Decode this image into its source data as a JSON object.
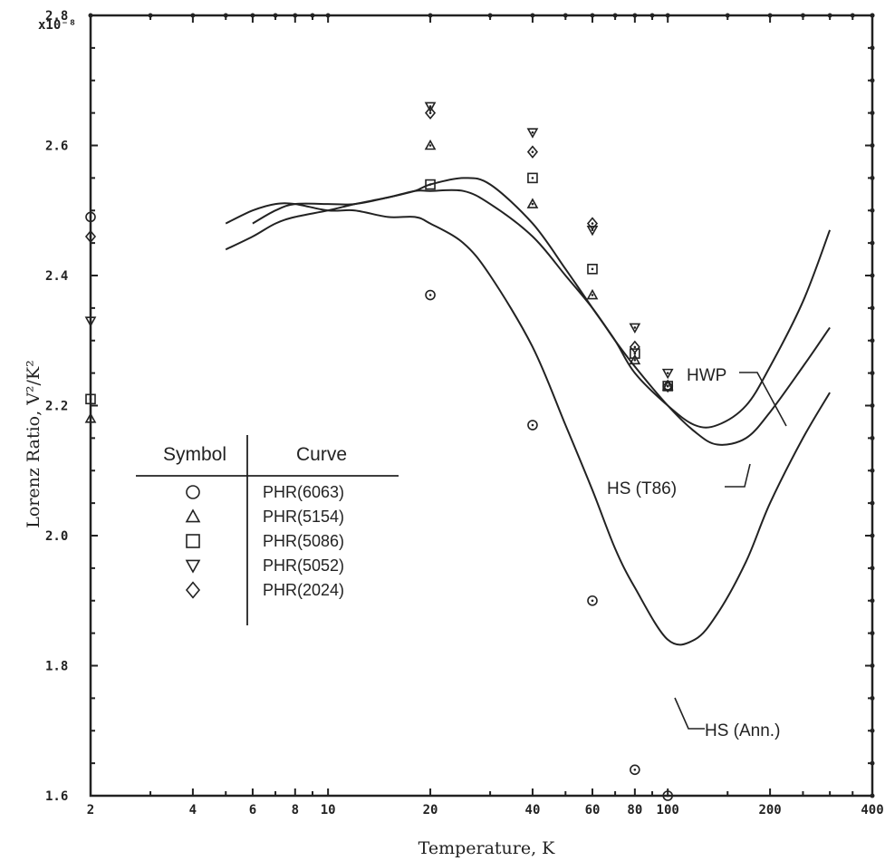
{
  "chart_data": {
    "type": "scatter",
    "title": "",
    "xlabel": "Temperature, K",
    "ylabel": "Lorenz Ratio, V²/K²",
    "y_multiplier_label": "x10⁻⁸",
    "x_scale": "log",
    "xlim": [
      2,
      400
    ],
    "ylim": [
      1.6,
      2.8
    ],
    "x_tick_labels": [
      "2",
      "4",
      "6",
      "8",
      "10",
      "20",
      "40",
      "60",
      "80",
      "100",
      "200",
      "400"
    ],
    "y_tick_labels": [
      "1.6",
      "1.8",
      "2.0",
      "2.2",
      "2.4",
      "2.6",
      "2.8"
    ],
    "grid": false,
    "curves": [
      {
        "name": "HWP",
        "x": [
          6,
          7,
          8,
          10,
          12,
          15,
          18,
          20,
          25,
          30,
          40,
          50,
          60,
          70,
          80,
          100,
          120,
          140,
          170,
          200,
          250,
          300
        ],
        "y": [
          2.48,
          2.5,
          2.51,
          2.51,
          2.51,
          2.52,
          2.53,
          2.54,
          2.55,
          2.54,
          2.48,
          2.41,
          2.35,
          2.3,
          2.25,
          2.2,
          2.17,
          2.17,
          2.2,
          2.26,
          2.36,
          2.47
        ]
      },
      {
        "name": "HS (T86)",
        "x": [
          5,
          6,
          7,
          8,
          10,
          12,
          15,
          18,
          20,
          25,
          30,
          40,
          50,
          60,
          70,
          80,
          100,
          120,
          140,
          170,
          200,
          250,
          300
        ],
        "y": [
          2.44,
          2.46,
          2.48,
          2.49,
          2.5,
          2.51,
          2.52,
          2.53,
          2.53,
          2.53,
          2.51,
          2.46,
          2.4,
          2.35,
          2.3,
          2.26,
          2.2,
          2.16,
          2.14,
          2.15,
          2.19,
          2.26,
          2.32
        ]
      },
      {
        "name": "HS (Ann.)",
        "x": [
          5,
          6,
          7,
          8,
          10,
          12,
          15,
          18,
          20,
          25,
          30,
          40,
          50,
          60,
          70,
          80,
          100,
          120,
          140,
          170,
          200,
          250,
          300
        ],
        "y": [
          2.48,
          2.5,
          2.51,
          2.51,
          2.5,
          2.5,
          2.49,
          2.49,
          2.48,
          2.45,
          2.4,
          2.29,
          2.17,
          2.07,
          1.98,
          1.92,
          1.84,
          1.84,
          1.88,
          1.96,
          2.05,
          2.15,
          2.22
        ]
      }
    ],
    "series": [
      {
        "name": "PHR(6063)",
        "symbol": "circle",
        "x": [
          2,
          20,
          40,
          60,
          80,
          100
        ],
        "y": [
          2.49,
          2.37,
          2.17,
          1.9,
          1.64,
          1.6
        ]
      },
      {
        "name": "PHR(5154)",
        "symbol": "triangle-up",
        "x": [
          2,
          20,
          40,
          60,
          80,
          100
        ],
        "y": [
          2.18,
          2.6,
          2.51,
          2.37,
          2.27,
          2.23
        ]
      },
      {
        "name": "PHR(5086)",
        "symbol": "square",
        "x": [
          2,
          20,
          40,
          60,
          80,
          100
        ],
        "y": [
          2.21,
          2.54,
          2.55,
          2.41,
          2.28,
          2.23
        ]
      },
      {
        "name": "PHR(5052)",
        "symbol": "triangle-down",
        "x": [
          2,
          20,
          40,
          60,
          80,
          100
        ],
        "y": [
          2.33,
          2.66,
          2.62,
          2.47,
          2.32,
          2.25
        ]
      },
      {
        "name": "PHR(2024)",
        "symbol": "diamond",
        "x": [
          2,
          20,
          40,
          60,
          80,
          100
        ],
        "y": [
          2.46,
          2.65,
          2.59,
          2.48,
          2.29,
          2.23
        ]
      }
    ],
    "legend": {
      "placement": "left",
      "header_symbol": "Symbol",
      "header_curve": "Curve",
      "entries": [
        "PHR(6063)",
        "PHR(5154)",
        "PHR(5086)",
        "PHR(5052)",
        "PHR(2024)"
      ]
    },
    "annotations": [
      "HWP",
      "HS (T86)",
      "HS (Ann.)"
    ]
  }
}
